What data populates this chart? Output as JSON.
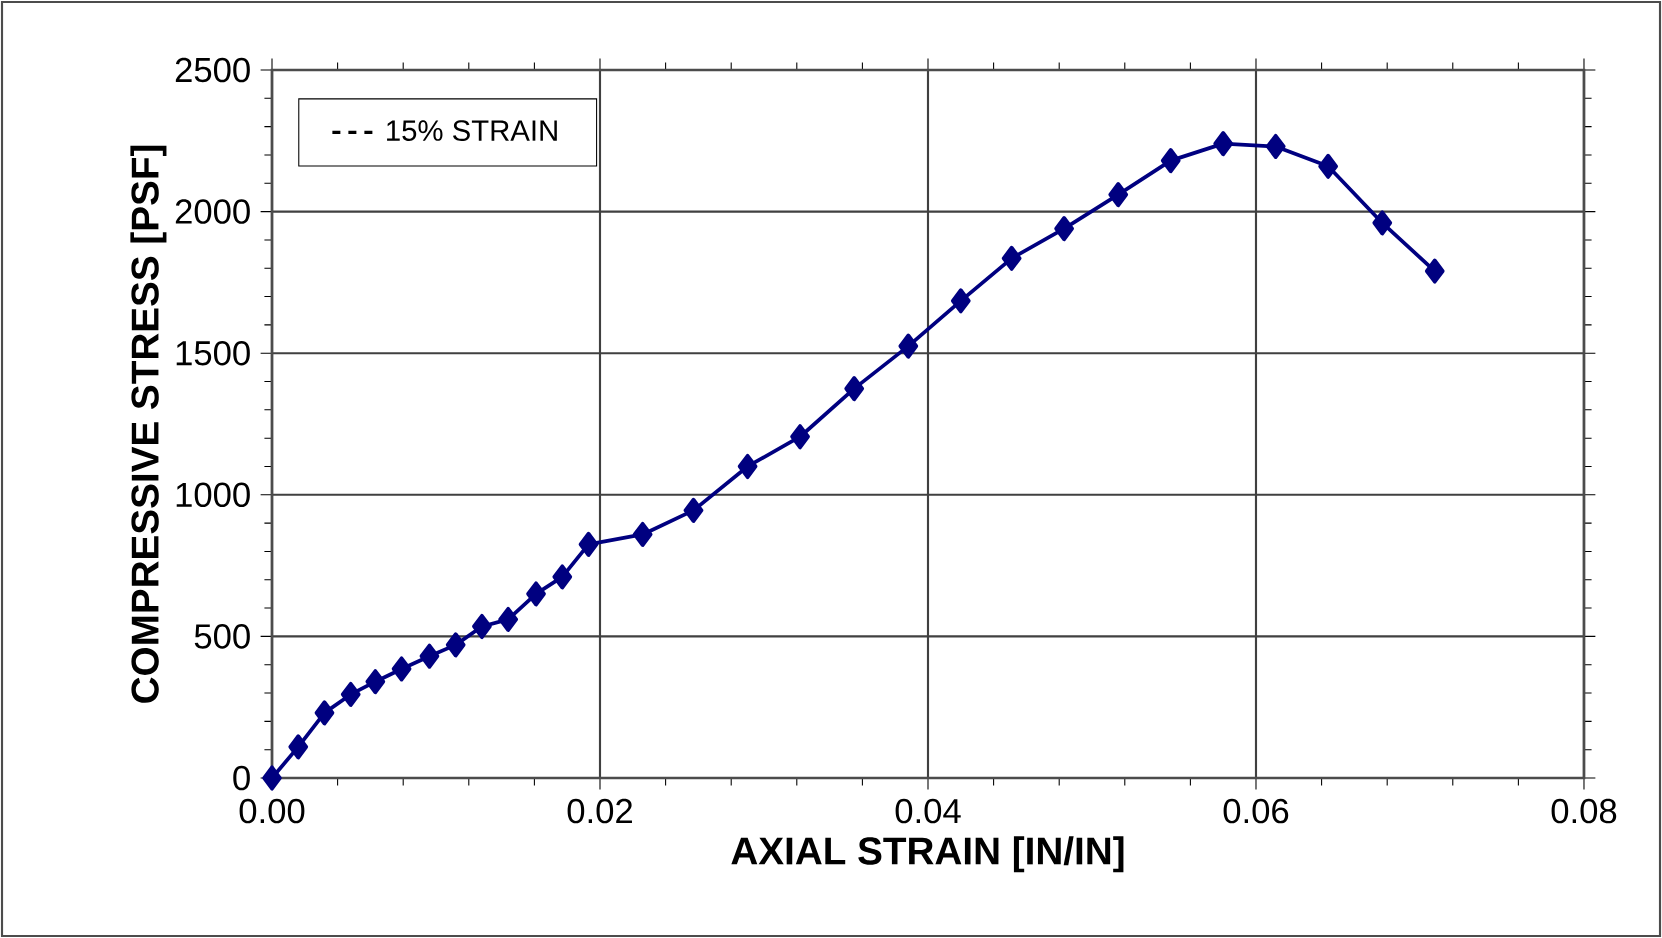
{
  "chart_data": {
    "type": "line",
    "xlabel": "AXIAL STRAIN [IN/IN]",
    "ylabel": "COMPRESSIVE STRESS [PSF]",
    "xlim": [
      0,
      0.08
    ],
    "xticks": [
      {
        "value": 0,
        "label": "0.00"
      },
      {
        "value": 0.02,
        "label": "0.02"
      },
      {
        "value": 0.04,
        "label": "0.04"
      },
      {
        "value": 0.06,
        "label": "0.06"
      },
      {
        "value": 0.08,
        "label": "0.08"
      }
    ],
    "ylim": [
      0,
      2500
    ],
    "yticks": [
      0,
      500,
      1000,
      1500,
      2000,
      2500
    ],
    "grid": true,
    "legend": "top left",
    "marker": "diamond",
    "x": [
      0,
      0.0016,
      0.0032,
      0.0048,
      0.0063,
      0.0079,
      0.0096,
      0.0112,
      0.0128,
      0.0144,
      0.0161,
      0.0177,
      0.0193,
      0.0226,
      0.0257,
      0.029,
      0.0322,
      0.0355,
      0.0388,
      0.042,
      0.0451,
      0.0483,
      0.0516,
      0.0548,
      0.058,
      0.0612,
      0.0644,
      0.0677,
      0.0709
    ],
    "series": [
      {
        "color": "#000080",
        "values": [
          0,
          110,
          230,
          295,
          340,
          385,
          430,
          470,
          535,
          560,
          650,
          710,
          825,
          860,
          945,
          1100,
          1205,
          1375,
          1525,
          1685,
          1835,
          1940,
          2060,
          2180,
          2240,
          2230,
          2160,
          1960,
          1790
        ]
      },
      {
        "name": "15% STRAIN",
        "color": "#000000",
        "line_style": "dashed",
        "marker": "none",
        "values": [
          null,
          null,
          null,
          null,
          null,
          null,
          null,
          null,
          null,
          null,
          null,
          null,
          null,
          null,
          null,
          null,
          null,
          null,
          null,
          null,
          null,
          null,
          null,
          null,
          null,
          null,
          null,
          null,
          null
        ]
      }
    ]
  }
}
